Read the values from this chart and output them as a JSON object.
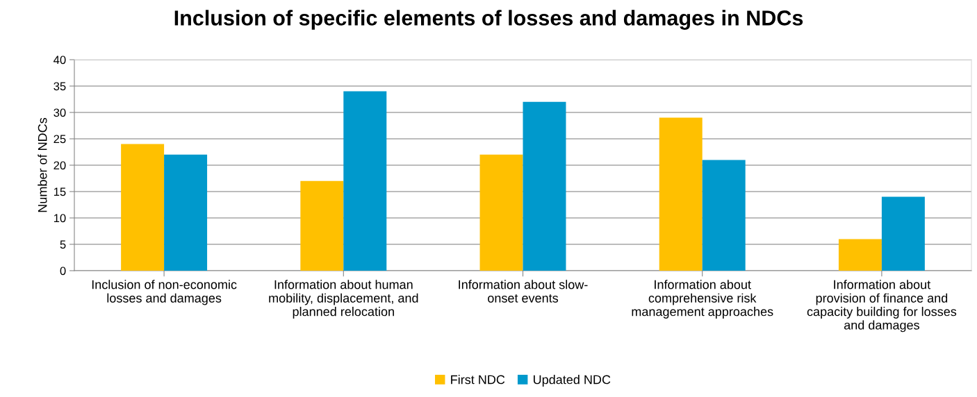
{
  "chart_data": {
    "type": "bar",
    "title": "Inclusion of specific elements of losses and damages in NDCs",
    "ylabel": "Number of NDCs",
    "categories": [
      "Inclusion of non-economic\nlosses and damages",
      "Information about human\nmobility, displacement, and\nplanned relocation",
      "Information about slow-\nonset events",
      "Information about\ncomprehensive risk\nmanagement approaches",
      "Information about\nprovision of finance and\ncapacity building for losses\nand damages"
    ],
    "series": [
      {
        "name": "First NDC",
        "color": "#ffc000",
        "values": [
          24,
          17,
          22,
          29,
          6
        ]
      },
      {
        "name": "Updated NDC",
        "color": "#0099cc",
        "values": [
          22,
          34,
          32,
          21,
          14
        ]
      }
    ],
    "ylim": [
      0,
      40
    ],
    "yticks": [
      0,
      5,
      10,
      15,
      20,
      25,
      30,
      35,
      40
    ],
    "grid": "y",
    "legend": "bottom"
  }
}
